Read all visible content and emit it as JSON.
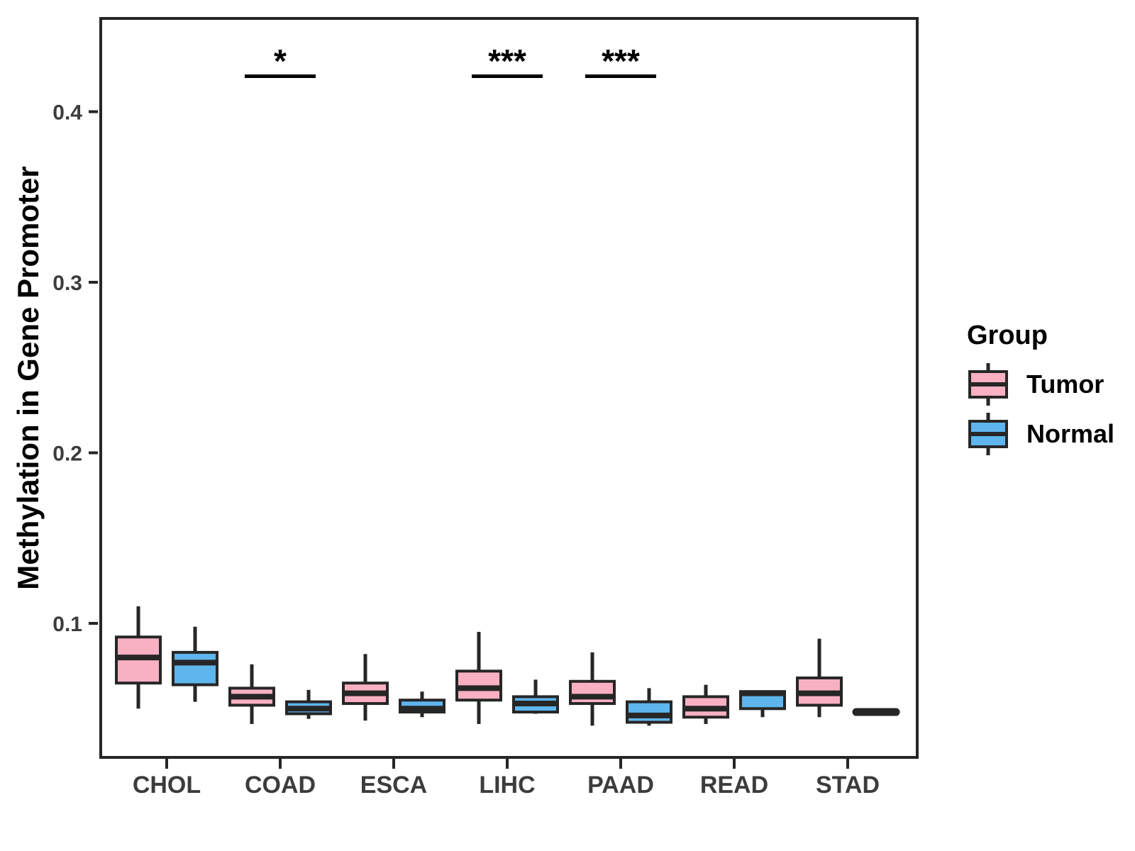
{
  "figure": {
    "background": "#FFFFFF"
  },
  "axes": {
    "y_label": "Methylation in Gene Promoter",
    "y_ticks": [
      {
        "value": 0.1,
        "label": "0.1"
      },
      {
        "value": 0.2,
        "label": "0.2"
      },
      {
        "value": 0.3,
        "label": "0.3"
      },
      {
        "value": 0.4,
        "label": "0.4"
      }
    ],
    "x_categories": [
      "CHOL",
      "COAD",
      "ESCA",
      "LIHC",
      "PAAD",
      "READ",
      "STAD"
    ]
  },
  "legend": {
    "title": "Group",
    "items": [
      {
        "label": "Tumor",
        "color": "#F9B0C3"
      },
      {
        "label": "Normal",
        "color": "#5FB5ED"
      }
    ]
  },
  "significance": [
    {
      "category": "COAD",
      "label": "*"
    },
    {
      "category": "LIHC",
      "label": "***"
    },
    {
      "category": "PAAD",
      "label": "***"
    }
  ],
  "colors": {
    "tumor": "#F9B0C3",
    "normal": "#5FB5ED",
    "line": "#262626",
    "sig": "#000000",
    "tick_text": "#3C3C3C",
    "title_text": "#000000"
  },
  "chart_data": {
    "type": "boxplot",
    "title": "",
    "xlabel": "",
    "ylabel": "Methylation in Gene Promoter",
    "categories": [
      "CHOL",
      "COAD",
      "ESCA",
      "LIHC",
      "PAAD",
      "READ",
      "STAD"
    ],
    "ylim": [
      0.023,
      0.455
    ],
    "grid": false,
    "legend_position": "right",
    "series": [
      {
        "name": "Tumor",
        "color": "#F9B0C3",
        "stats": [
          {
            "min": 0.05,
            "q1": 0.065,
            "median": 0.08,
            "q3": 0.092,
            "max": 0.11
          },
          {
            "min": 0.041,
            "q1": 0.052,
            "median": 0.057,
            "q3": 0.062,
            "max": 0.076
          },
          {
            "min": 0.043,
            "q1": 0.053,
            "median": 0.059,
            "q3": 0.065,
            "max": 0.082
          },
          {
            "min": 0.041,
            "q1": 0.055,
            "median": 0.062,
            "q3": 0.072,
            "max": 0.095
          },
          {
            "min": 0.04,
            "q1": 0.053,
            "median": 0.057,
            "q3": 0.066,
            "max": 0.083
          },
          {
            "min": 0.041,
            "q1": 0.045,
            "median": 0.05,
            "q3": 0.057,
            "max": 0.064
          },
          {
            "min": 0.045,
            "q1": 0.052,
            "median": 0.059,
            "q3": 0.068,
            "max": 0.091
          }
        ]
      },
      {
        "name": "Normal",
        "color": "#5FB5ED",
        "stats": [
          {
            "min": 0.054,
            "q1": 0.064,
            "median": 0.077,
            "q3": 0.083,
            "max": 0.098
          },
          {
            "min": 0.044,
            "q1": 0.047,
            "median": 0.05,
            "q3": 0.054,
            "max": 0.061
          },
          {
            "min": 0.045,
            "q1": 0.048,
            "median": 0.05,
            "q3": 0.055,
            "max": 0.06
          },
          {
            "min": 0.047,
            "q1": 0.048,
            "median": 0.053,
            "q3": 0.057,
            "max": 0.067
          },
          {
            "min": 0.04,
            "q1": 0.042,
            "median": 0.046,
            "q3": 0.054,
            "max": 0.062
          },
          {
            "min": 0.045,
            "q1": 0.05,
            "median": 0.059,
            "q3": 0.06,
            "max": 0.06
          },
          {
            "min": 0.048,
            "q1": 0.048,
            "median": 0.048,
            "q3": 0.048,
            "max": 0.048
          }
        ]
      }
    ]
  }
}
